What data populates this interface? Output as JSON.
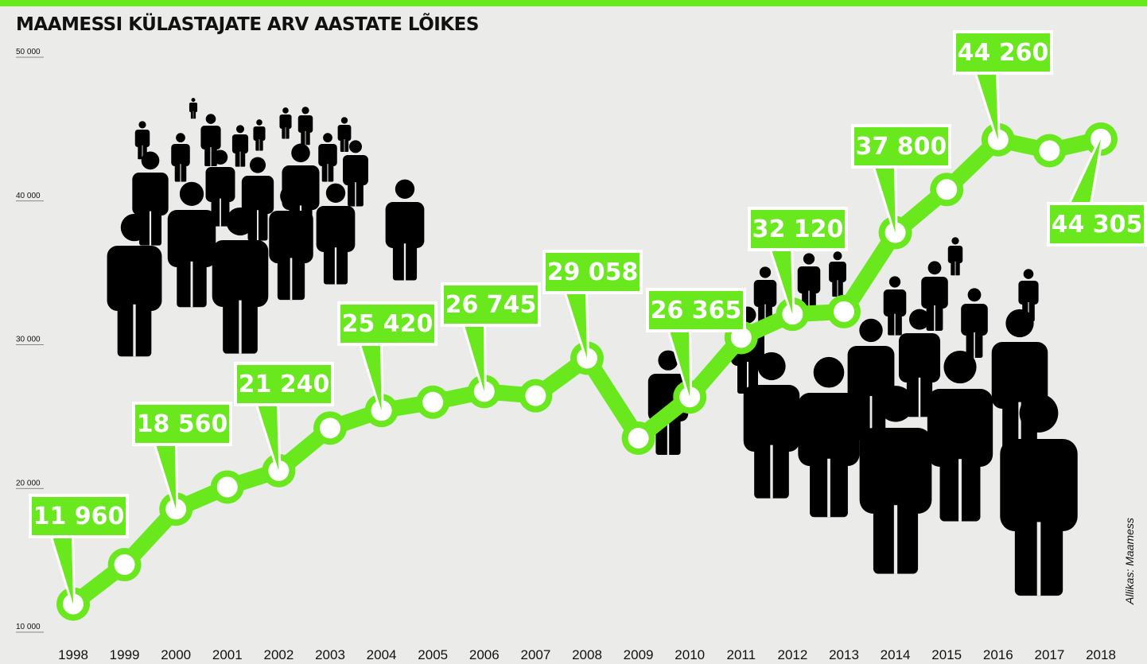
{
  "title": "MAAMESSI KÜLASTAJATE ARV AASTATE LÕIKES",
  "source": "Allikas: Maamess",
  "colors": {
    "accent": "#69e81e",
    "figure": "#000000",
    "background": "#ebebea",
    "text": "#111111"
  },
  "icon": "person-silhouette-icon",
  "chart_data": {
    "type": "line",
    "title": "MAAMESSI KÜLASTAJATE ARV AASTATE LÕIKES",
    "xlabel": "",
    "ylabel": "",
    "ylim": [
      10000,
      50000
    ],
    "y_ticks": [
      10000,
      20000,
      30000,
      40000,
      50000
    ],
    "y_tick_labels": [
      "10 000",
      "20 000",
      "30 000",
      "40 000",
      "50 000"
    ],
    "grid": false,
    "x": [
      "1998",
      "1999",
      "2000",
      "2001",
      "2002",
      "2003",
      "2004",
      "2005",
      "2006",
      "2007",
      "2008",
      "2009",
      "2010",
      "2011",
      "2012",
      "2013",
      "2014",
      "2015",
      "2016",
      "2017",
      "2018"
    ],
    "values": [
      11960,
      14700,
      18560,
      20100,
      21240,
      24200,
      25420,
      26000,
      26745,
      26450,
      29058,
      23500,
      26365,
      30500,
      32120,
      32300,
      37800,
      40800,
      44260,
      43500,
      44305
    ],
    "data_labels": [
      {
        "year": "1998",
        "text": "11 960"
      },
      {
        "year": "2000",
        "text": "18 560"
      },
      {
        "year": "2002",
        "text": "21 240"
      },
      {
        "year": "2004",
        "text": "25 420"
      },
      {
        "year": "2006",
        "text": "26 745"
      },
      {
        "year": "2008",
        "text": "29 058"
      },
      {
        "year": "2010",
        "text": "26 365"
      },
      {
        "year": "2012",
        "text": "32 120"
      },
      {
        "year": "2014",
        "text": "37 800"
      },
      {
        "year": "2016",
        "text": "44 260"
      },
      {
        "year": "2018",
        "text": "44 305"
      }
    ]
  }
}
